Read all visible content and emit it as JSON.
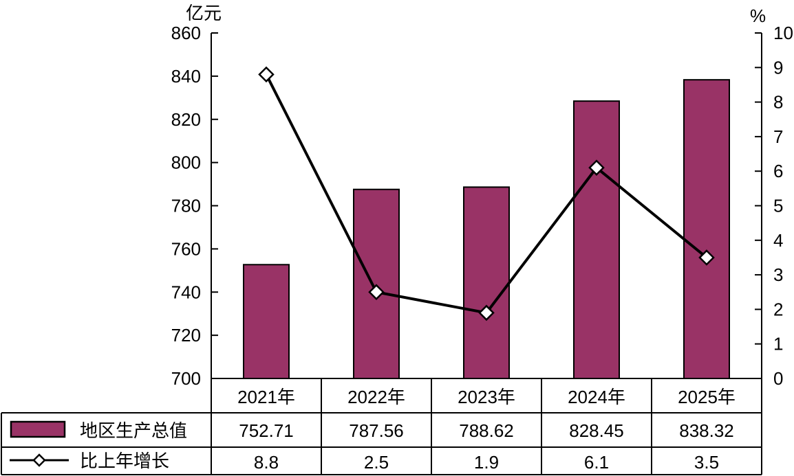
{
  "chart_data": {
    "type": "bar",
    "title": "",
    "categories": [
      "2021年",
      "2022年",
      "2023年",
      "2024年",
      "2025年"
    ],
    "series": [
      {
        "name": "地区生产总值",
        "kind": "bar",
        "axis": "left",
        "values": [
          752.71,
          787.56,
          788.62,
          828.45,
          838.32
        ],
        "labels": [
          "752.71",
          "787.56",
          "788.62",
          "828.45",
          "838.32"
        ],
        "color": "#993366"
      },
      {
        "name": "比上年增长",
        "kind": "line",
        "axis": "right",
        "values": [
          8.8,
          2.5,
          1.9,
          6.1,
          3.5
        ],
        "labels": [
          "8.8",
          "2.5",
          "1.9",
          "6.1",
          "3.5"
        ],
        "color": "#000000"
      }
    ],
    "y_left": {
      "unit": "亿元",
      "min": 700,
      "max": 860,
      "ticks": [
        "700",
        "720",
        "740",
        "760",
        "780",
        "800",
        "820",
        "840",
        "860"
      ]
    },
    "y_right": {
      "unit": "%",
      "min": 0,
      "max": 10,
      "ticks": [
        "0",
        "1",
        "2",
        "3",
        "4",
        "5",
        "6",
        "7",
        "8",
        "9",
        "10"
      ]
    },
    "grid": false,
    "legend": "data-table"
  }
}
